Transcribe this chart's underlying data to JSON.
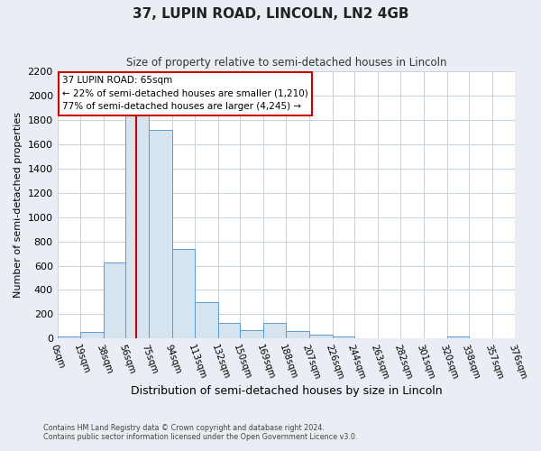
{
  "title": "37, LUPIN ROAD, LINCOLN, LN2 4GB",
  "subtitle": "Size of property relative to semi-detached houses in Lincoln",
  "xlabel": "Distribution of semi-detached houses by size in Lincoln",
  "ylabel": "Number of semi-detached properties",
  "bin_edges": [
    0,
    19,
    38,
    56,
    75,
    94,
    113,
    132,
    150,
    169,
    188,
    207,
    226,
    244,
    263,
    282,
    301,
    320,
    338,
    357,
    376
  ],
  "bin_heights": [
    15,
    55,
    625,
    1840,
    1720,
    740,
    300,
    130,
    65,
    130,
    60,
    35,
    15,
    5,
    5,
    3,
    3,
    15,
    3,
    3
  ],
  "bar_color": "#d6e4f0",
  "bar_edge_color": "#5b9bd5",
  "property_value": 65,
  "vline_color": "#cc0000",
  "annotation_title": "37 LUPIN ROAD: 65sqm",
  "annotation_line1": "← 22% of semi-detached houses are smaller (1,210)",
  "annotation_line2": "77% of semi-detached houses are larger (4,245) →",
  "annotation_box_color": "#ffffff",
  "annotation_box_edge": "#cc0000",
  "tick_labels": [
    "0sqm",
    "19sqm",
    "38sqm",
    "56sqm",
    "75sqm",
    "94sqm",
    "113sqm",
    "132sqm",
    "150sqm",
    "169sqm",
    "188sqm",
    "207sqm",
    "226sqm",
    "244sqm",
    "263sqm",
    "282sqm",
    "301sqm",
    "320sqm",
    "338sqm",
    "357sqm",
    "376sqm"
  ],
  "ylim": [
    0,
    2200
  ],
  "yticks": [
    0,
    200,
    400,
    600,
    800,
    1000,
    1200,
    1400,
    1600,
    1800,
    2000,
    2200
  ],
  "grid_color": "#c8d0d8",
  "plot_bg_color": "#ffffff",
  "outer_bg_color": "#e8eef4",
  "footer_line1": "Contains HM Land Registry data © Crown copyright and database right 2024.",
  "footer_line2": "Contains public sector information licensed under the Open Government Licence v3.0."
}
